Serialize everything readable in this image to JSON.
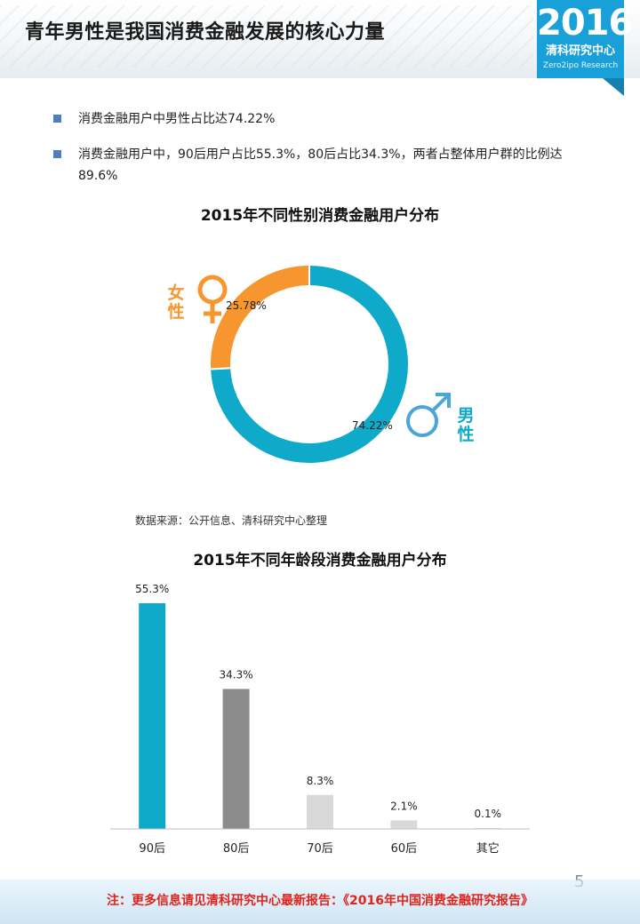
{
  "page": {
    "title": "青年男性是我国消费金融发展的核心力量",
    "page_number": "5"
  },
  "logo": {
    "year": "2016",
    "name": "清科研究中心",
    "en": "Zero2ipo Research",
    "color": "#1aa0d8"
  },
  "bullets": [
    "消费金融用户中男性占比达74.22%",
    "消费金融用户中，90后用户占比55.3%，80后占比34.3%，两者占整体用户群的比例达89.6%"
  ],
  "source_note": "数据来源：公开信息、清科研究中心整理",
  "footer_note": "注：更多信息请见清科研究中心最新报告：《2016年中国消费金融研究报告》",
  "gender_labels": {
    "female": "女性",
    "male": "男性",
    "female_icon": "female-symbol-icon",
    "male_icon": "male-symbol-icon"
  },
  "chart_data": [
    {
      "type": "pie",
      "title": "2015年不同性别消费金融用户分布",
      "categories": [
        "男性",
        "女性"
      ],
      "values": [
        74.22,
        25.78
      ],
      "labels": [
        "74.22%",
        "25.78%"
      ],
      "colors": [
        "#0fa9c9",
        "#f7962e"
      ],
      "legend": "none"
    },
    {
      "type": "bar",
      "title": "2015年不同年龄段消费金融用户分布",
      "categories": [
        "90后",
        "80后",
        "70后",
        "60后",
        "其它"
      ],
      "values": [
        55.3,
        34.3,
        8.3,
        2.1,
        0.1
      ],
      "labels": [
        "55.3%",
        "34.3%",
        "8.3%",
        "2.1%",
        "0.1%"
      ],
      "colors": [
        "#0fa9c9",
        "#8c8c8c",
        "#d9d9d9",
        "#d9d9d9",
        "#d9d9d9"
      ],
      "ylim": [
        0,
        60
      ],
      "grid": false,
      "legend": "none"
    }
  ]
}
